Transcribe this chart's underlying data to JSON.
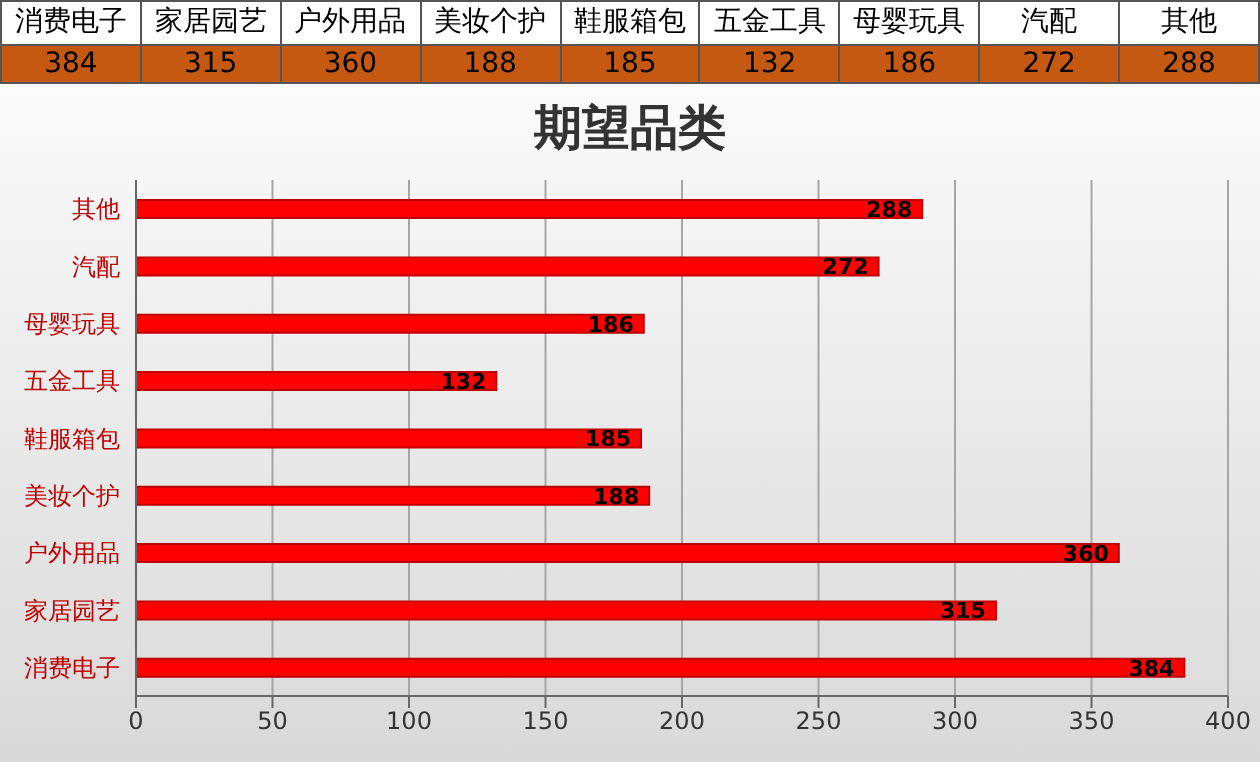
{
  "chart_data": [
    {
      "type": "other",
      "categories": [
        "消费电子",
        "家居园艺",
        "户外用品",
        "美妆个护",
        "鞋服箱包",
        "五金工具",
        "母婴玩具",
        "汽配",
        "其他"
      ],
      "values": [
        384,
        315,
        360,
        188,
        185,
        132,
        186,
        272,
        288
      ],
      "color": "#c65911",
      "data_labels": true
    },
    {
      "type": "bar",
      "orientation": "horizontal",
      "title": "期望品类",
      "categories": [
        "其他",
        "汽配",
        "母婴玩具",
        "五金工具",
        "鞋服箱包",
        "美妆个护",
        "户外用品",
        "家居园艺",
        "消费电子"
      ],
      "values": [
        288,
        272,
        186,
        132,
        185,
        188,
        360,
        315,
        384
      ],
      "color": "#ff0000",
      "xlim": [
        0,
        400
      ],
      "xticks": [
        0,
        50,
        100,
        150,
        200,
        250,
        300,
        350,
        400
      ],
      "grid": "x",
      "data_labels": true
    }
  ]
}
